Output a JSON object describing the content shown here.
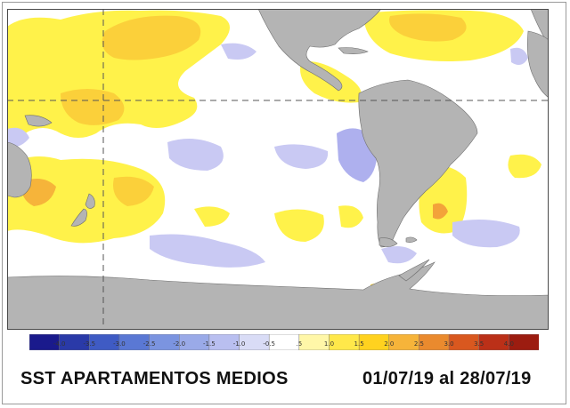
{
  "caption": {
    "title": "SST APARTAMENTOS MEDIOS",
    "dates": "01/07/19 al 28/07/19"
  },
  "legend": {
    "ticks": [
      "-4.0",
      "-3.5",
      "-3.0",
      "-2.5",
      "-2.0",
      "-1.5",
      "-1.0",
      "-0.5",
      ".5",
      "1.0",
      "1.5",
      "2.0",
      "2.5",
      "3.0",
      "3.5",
      "4.0"
    ],
    "colors": [
      "#1a1a8c",
      "#2a3aa8",
      "#3f5bc4",
      "#5a78d4",
      "#7b94e0",
      "#9aaae8",
      "#b9bff0",
      "#d9dcf6",
      "#ffffff",
      "#fff7a8",
      "#ffe84a",
      "#ffd21f",
      "#f6b43a",
      "#ea8a2e",
      "#d9581f",
      "#bb3018",
      "#9c1c10"
    ]
  },
  "map_colors": {
    "land": "#b4b4b4",
    "ocean": "#ffffff",
    "warm_light": "#fff24a",
    "warm_mid": "#fbd03a",
    "warm_strong": "#f3a33a",
    "cool_light": "#c9c9f3",
    "cool_mid": "#aeb0ee",
    "guides": "#555555"
  }
}
